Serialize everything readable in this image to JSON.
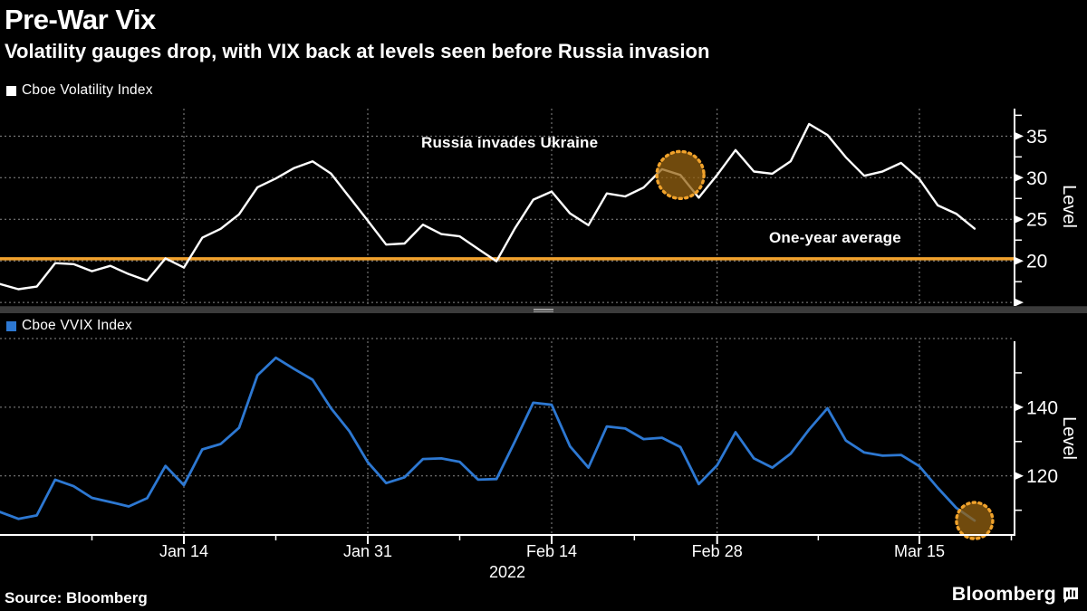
{
  "header": {
    "title": "Pre-War Vix",
    "subtitle": "Volatility gauges drop, with VIX back at levels seen before Russia invasion"
  },
  "footer": {
    "source": "Source: Bloomberg",
    "brand": "Bloomberg"
  },
  "colors": {
    "background": "#000000",
    "text": "#ffffff",
    "axis": "#ffffff",
    "grid": "#8a8a8a",
    "vix_line": "#ffffff",
    "vvix_line": "#2d78d2",
    "average_line": "#f2a22e",
    "annotation_ring": "#f0a22b",
    "annotation_fill": "rgba(150,99,18,0.75)",
    "separator": "#3b3b3b"
  },
  "chart_data": [
    {
      "type": "line",
      "legend": "Cboe Volatility Index",
      "series_color": "#ffffff",
      "ylabel": "Level",
      "ylim": [
        14.8,
        38.3
      ],
      "yticks_labeled": [
        20,
        25,
        30,
        35
      ],
      "yticks_arrow_only": [
        15
      ],
      "yticks_minor": [
        17.5,
        22.5,
        27.5,
        32.5,
        37.5
      ],
      "gridlines_y": [
        15,
        20,
        25,
        30,
        35
      ],
      "average_line": {
        "label": "One-year average",
        "value": 20.25,
        "color": "#f2a22e"
      },
      "annotation": {
        "label": "Russia invades Ukraine",
        "point_index": 37,
        "style": "dotted-circle"
      },
      "values": [
        17.22,
        16.6,
        16.91,
        19.73,
        19.61,
        18.76,
        19.4,
        18.41,
        17.62,
        20.31,
        19.19,
        22.79,
        23.85,
        25.59,
        28.85,
        29.9,
        31.16,
        31.96,
        30.49,
        27.66,
        24.83,
        21.96,
        22.09,
        24.35,
        23.22,
        22.95,
        21.44,
        19.96,
        23.91,
        27.36,
        28.33,
        25.7,
        24.29,
        28.11,
        27.75,
        28.81,
        31.02,
        30.32,
        27.59,
        30.32,
        33.32,
        30.74,
        30.48,
        31.98,
        36.45,
        35.13,
        32.45,
        30.23,
        30.75,
        31.77,
        29.83,
        26.67,
        25.67,
        23.87
      ]
    },
    {
      "type": "line",
      "legend": "Cboe VVIX Index",
      "series_color": "#2d78d2",
      "ylabel": "Level",
      "ylim": [
        102.8,
        159.2
      ],
      "yticks_labeled": [
        120,
        140
      ],
      "yticks_arrow_only": [],
      "yticks_minor": [
        110,
        130,
        150
      ],
      "gridlines_y": [
        120,
        140,
        160
      ],
      "annotation": {
        "point_index": 53,
        "style": "dotted-circle"
      },
      "x_axis": {
        "year": "2022",
        "tick_labels": [
          "Jan 14",
          "Jan 31",
          "Feb 14",
          "Feb 28",
          "Mar 15"
        ],
        "tick_indices": [
          10,
          20,
          30,
          39,
          50
        ],
        "minor_tick_indices": [
          5,
          15,
          25,
          34.5,
          44.5,
          55
        ]
      },
      "values": [
        109.5,
        107.5,
        108.5,
        118.9,
        117.0,
        113.6,
        112.4,
        111.1,
        113.5,
        122.9,
        117.3,
        127.7,
        129.3,
        134.0,
        149.3,
        154.4,
        151.1,
        148.0,
        139.7,
        133.0,
        124.0,
        117.9,
        119.6,
        124.9,
        125.1,
        124.1,
        118.9,
        119.1,
        130.0,
        141.3,
        140.7,
        128.6,
        122.4,
        134.4,
        133.8,
        130.7,
        131.1,
        128.4,
        117.6,
        123.1,
        132.7,
        125.1,
        122.4,
        126.5,
        133.5,
        139.7,
        130.3,
        126.8,
        125.9,
        126.1,
        122.8,
        116.5,
        110.7,
        107.0
      ]
    }
  ]
}
